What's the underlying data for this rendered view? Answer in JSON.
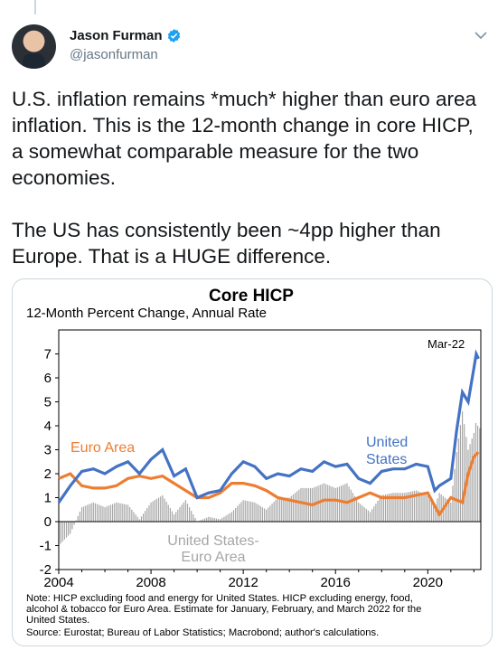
{
  "tweet": {
    "author": {
      "name": "Jason Furman",
      "handle": "@jasonfurman"
    },
    "text": "U.S. inflation remains *much* higher than euro area inflation. This is the 12-month change in core HICP, a somewhat comparable measure for the two economies.\n\nThe US has consistently been ~4pp higher than Europe. That is a HUGE difference.",
    "icons": [
      "verified-icon",
      "chevron-down-icon"
    ],
    "colors": {
      "us": "#4472c4",
      "ea": "#ed7d31",
      "diff": "#a6a6a6",
      "verified": "#1da1f2"
    }
  },
  "chart_data": {
    "type": "line",
    "title": "Core HICP",
    "subtitle": "12-Month Percent Change, Annual Rate",
    "ylim": [
      -2,
      8
    ],
    "y_ticks": [
      -2,
      -1,
      0,
      1,
      2,
      3,
      4,
      5,
      6,
      7
    ],
    "xlim": [
      2004,
      2022.3
    ],
    "x_ticks": [
      2004,
      2008,
      2012,
      2016,
      2020
    ],
    "annotation": "Mar-22",
    "series": [
      {
        "name": "United States",
        "label_lines": [
          "United",
          "States"
        ],
        "x": [
          2004,
          2004.5,
          2005,
          2005.5,
          2006,
          2006.5,
          2007,
          2007.5,
          2008,
          2008.5,
          2009,
          2009.5,
          2010,
          2010.5,
          2011,
          2011.5,
          2012,
          2012.5,
          2013,
          2013.5,
          2014,
          2014.5,
          2015,
          2015.5,
          2016,
          2016.5,
          2017,
          2017.5,
          2018,
          2018.5,
          2019,
          2019.5,
          2020,
          2020.3,
          2020.5,
          2021,
          2021.25,
          2021.5,
          2021.75,
          2022,
          2022.1,
          2022.2
        ],
        "values": [
          0.8,
          1.5,
          2.1,
          2.2,
          2.0,
          2.3,
          2.5,
          2.0,
          2.6,
          3.0,
          1.9,
          2.2,
          1.0,
          1.2,
          1.3,
          2.0,
          2.5,
          2.3,
          1.8,
          2.0,
          1.9,
          2.2,
          2.1,
          2.5,
          2.3,
          2.4,
          1.8,
          1.6,
          2.1,
          2.2,
          2.2,
          2.4,
          2.3,
          1.3,
          1.5,
          1.8,
          3.8,
          5.4,
          5.0,
          6.4,
          7.0,
          6.8
        ]
      },
      {
        "name": "Euro Area",
        "x": [
          2004,
          2004.5,
          2005,
          2005.5,
          2006,
          2006.5,
          2007,
          2007.5,
          2008,
          2008.5,
          2009,
          2009.5,
          2010,
          2010.5,
          2011,
          2011.5,
          2012,
          2012.5,
          2013,
          2013.5,
          2014,
          2014.5,
          2015,
          2015.5,
          2016,
          2016.5,
          2017,
          2017.5,
          2018,
          2018.5,
          2019,
          2019.5,
          2020,
          2020.5,
          2021,
          2021.5,
          2021.75,
          2022,
          2022.2
        ],
        "values": [
          1.8,
          2.0,
          1.5,
          1.4,
          1.4,
          1.5,
          1.8,
          1.9,
          1.8,
          1.9,
          1.6,
          1.3,
          1.0,
          1.0,
          1.2,
          1.6,
          1.6,
          1.5,
          1.3,
          1.0,
          0.9,
          0.8,
          0.7,
          0.9,
          0.9,
          0.8,
          1.0,
          1.2,
          1.0,
          1.0,
          1.0,
          1.1,
          1.2,
          0.3,
          1.0,
          0.8,
          2.0,
          2.7,
          2.9
        ]
      },
      {
        "name": "United States-Euro Area",
        "label_lines": [
          "United States-",
          "Euro Area"
        ]
      }
    ],
    "notes": [
      "Note: HICP excluding food and energy for United States. HICP excluding energy, food,",
      "alcohol & tobacco for Euro Area. Estimate for January, February, and March 2022 for the",
      "United States.",
      "Source: Eurostat; Bureau of Labor Statistics; Macrobond; author's calculations."
    ]
  }
}
